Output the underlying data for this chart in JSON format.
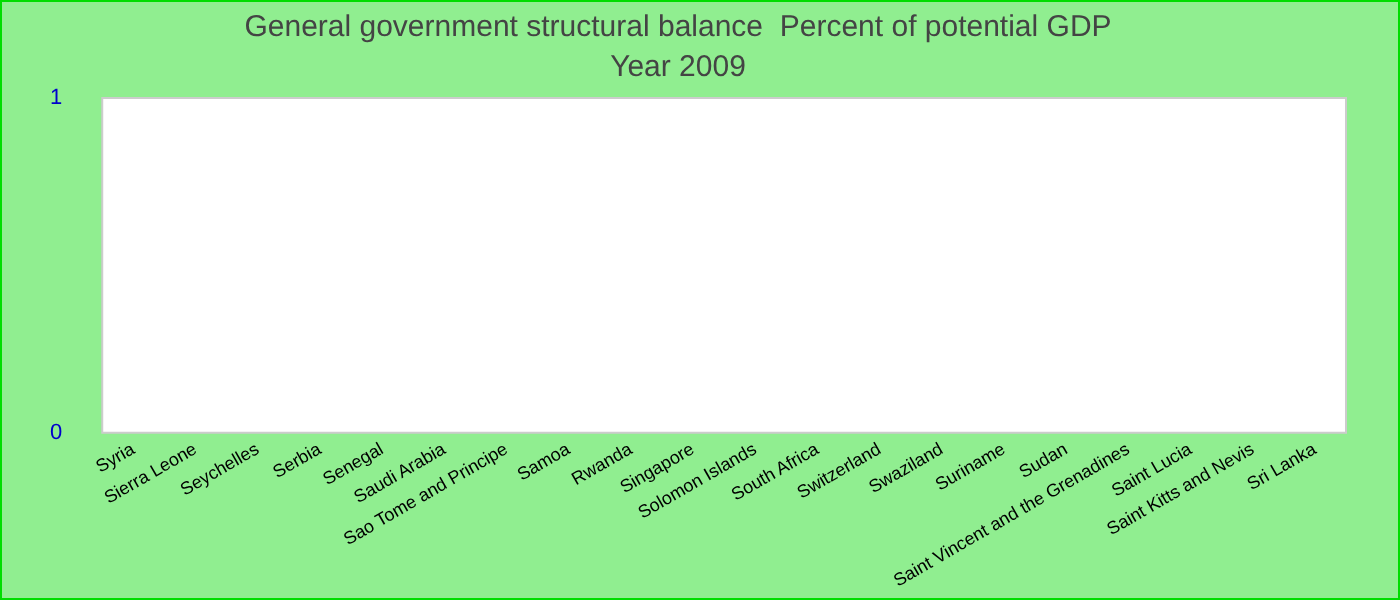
{
  "chart_data": {
    "type": "bar",
    "title": "General government structural balance  Percent of potential GDP",
    "subtitle": "Year 2009",
    "categories": [
      "Syria",
      "Sierra Leone",
      "Seychelles",
      "Serbia",
      "Senegal",
      "Saudi Arabia",
      "Sao Tome and Principe",
      "Samoa",
      "Rwanda",
      "Singapore",
      "Solomon Islands",
      "South Africa",
      "Switzerland",
      "Swaziland",
      "Suriname",
      "Sudan",
      "Saint Vincent and the Grenadines",
      "Saint Lucia",
      "Saint Kitts and Nevis",
      "Sri Lanka"
    ],
    "values": [
      null,
      null,
      null,
      null,
      null,
      null,
      null,
      null,
      null,
      null,
      null,
      null,
      null,
      null,
      null,
      null,
      null,
      null,
      null,
      null
    ],
    "ylim": [
      0,
      1
    ],
    "yticks": [
      0,
      1
    ],
    "grid": false,
    "legend": false
  }
}
